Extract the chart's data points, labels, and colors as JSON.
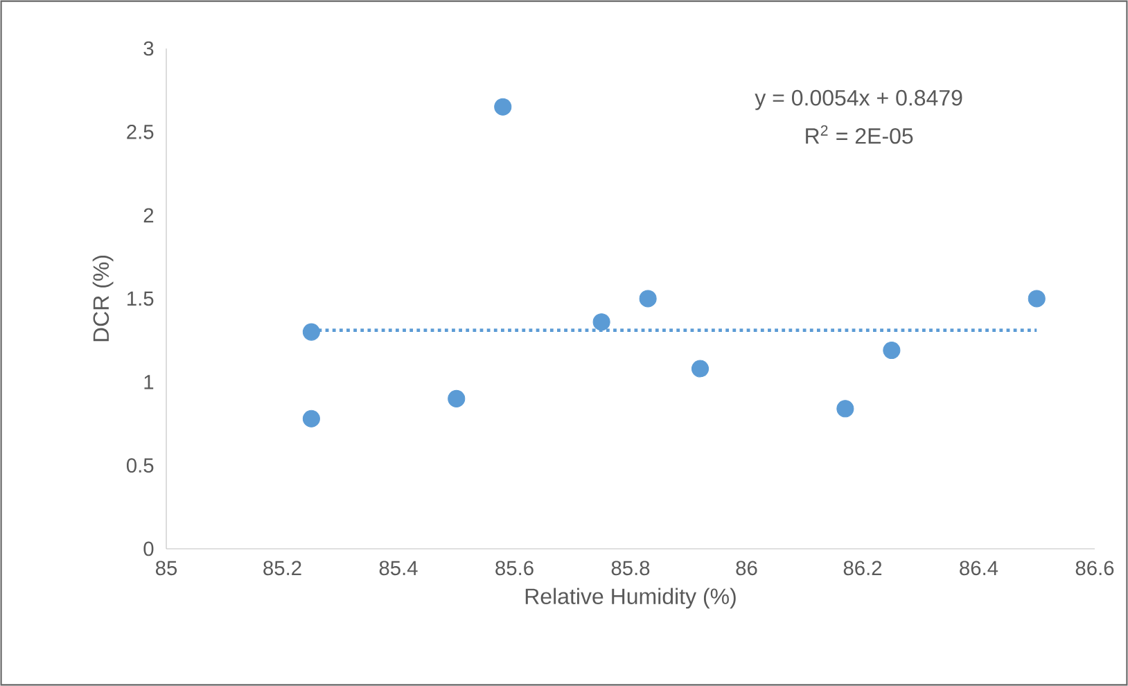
{
  "chart_data": {
    "type": "scatter",
    "xlabel": "Relative Humidity (%)",
    "ylabel": "DCR (%)",
    "annotations": [
      "y = 0.0054x + 0.8479",
      "R$^{2}$ = 2E-05"
    ],
    "series": [
      {
        "color": "#5b9bd5",
        "marker": "circle",
        "x": [
          85.25,
          85.25,
          85.5,
          85.58,
          85.75,
          85.83,
          85.92,
          86.17,
          86.25,
          86.5
        ],
        "values": [
          1.3,
          0.78,
          0.9,
          2.65,
          1.36,
          1.5,
          1.08,
          0.84,
          1.19,
          1.5
        ]
      },
      {
        "type": "line",
        "color": "#5b9bd5",
        "line_style": "dotted",
        "marker": "none",
        "x": [
          85.25,
          86.5
        ],
        "values": [
          1.31,
          1.31
        ]
      }
    ],
    "xlim": [
      85,
      86.6
    ],
    "xticks": [
      85,
      85.2,
      85.4,
      85.6,
      85.8,
      86,
      86.2,
      86.4,
      86.6
    ],
    "ylim": [
      0,
      3
    ],
    "yticks": [
      0,
      0.5,
      1,
      1.5,
      2,
      2.5,
      3
    ],
    "grid": false
  }
}
